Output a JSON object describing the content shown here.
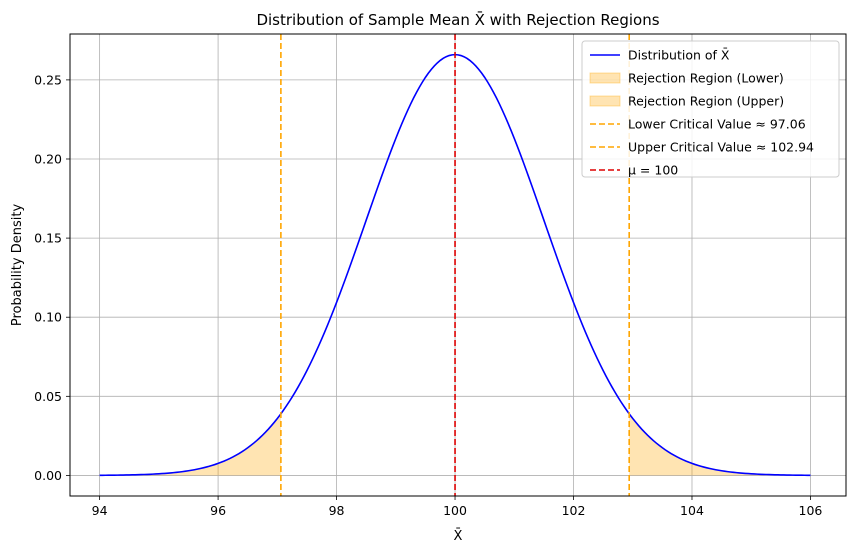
{
  "chart_data": {
    "type": "line",
    "title": "Distribution of Sample Mean X̄ with Rejection Regions",
    "xlabel": "X̄",
    "ylabel": "Probability Density",
    "xlim": [
      93.5,
      106.6
    ],
    "ylim": [
      -0.013,
      0.279
    ],
    "x_ticks": [
      94,
      96,
      98,
      100,
      102,
      104,
      106
    ],
    "x_tick_labels": [
      "94",
      "96",
      "98",
      "100",
      "102",
      "104",
      "106"
    ],
    "y_ticks": [
      0.0,
      0.05,
      0.1,
      0.15,
      0.2,
      0.25
    ],
    "y_tick_labels": [
      "0.00",
      "0.05",
      "0.10",
      "0.15",
      "0.20",
      "0.25"
    ],
    "grid": true,
    "legend_position": "top-right",
    "distribution": {
      "mean": 100,
      "sd": 1.5,
      "x_range": [
        94,
        106
      ]
    },
    "series": [
      {
        "name": "Distribution of X̄",
        "kind": "line",
        "color": "#0000ff"
      },
      {
        "name": "Rejection Region (Lower)",
        "kind": "fill",
        "color": "#ffa500",
        "x_range": [
          94,
          97.06
        ]
      },
      {
        "name": "Rejection Region (Upper)",
        "kind": "fill",
        "color": "#ffa500",
        "x_range": [
          102.94,
          106
        ]
      },
      {
        "name": "Lower Critical Value ≈ 97.06",
        "kind": "vline",
        "color": "#ffa500",
        "x": 97.06
      },
      {
        "name": "Upper Critical Value ≈ 102.94",
        "kind": "vline",
        "color": "#ffa500",
        "x": 102.94
      },
      {
        "name": "μ = 100",
        "kind": "vline",
        "color": "#dd0000",
        "x": 100
      }
    ]
  }
}
